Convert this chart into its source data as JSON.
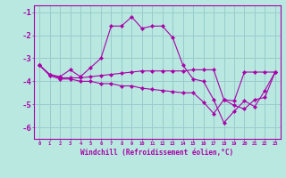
{
  "xlabel": "Windchill (Refroidissement éolien,°C)",
  "background_color": "#b8e8df",
  "line_color": "#aa00aa",
  "grid_color": "#99cccc",
  "x_values": [
    0,
    1,
    2,
    3,
    4,
    5,
    6,
    7,
    8,
    9,
    10,
    11,
    12,
    13,
    14,
    15,
    16,
    17,
    18,
    19,
    20,
    21,
    22,
    23
  ],
  "series1": [
    -3.3,
    -3.7,
    -3.8,
    -3.5,
    -3.8,
    -3.4,
    -3.0,
    -1.6,
    -1.6,
    -1.2,
    -1.7,
    -1.6,
    -1.6,
    -2.1,
    -3.3,
    -3.9,
    -4.0,
    -4.8,
    -5.8,
    -5.3,
    -4.85,
    -5.1,
    -4.4,
    -3.6
  ],
  "series2": [
    -3.3,
    -3.7,
    -3.85,
    -3.85,
    -3.85,
    -3.8,
    -3.75,
    -3.7,
    -3.65,
    -3.6,
    -3.55,
    -3.55,
    -3.55,
    -3.55,
    -3.55,
    -3.5,
    -3.5,
    -3.5,
    -4.8,
    -4.85,
    -3.6,
    -3.6,
    -3.6,
    -3.6
  ],
  "series3": [
    -3.3,
    -3.75,
    -3.9,
    -3.9,
    -4.0,
    -4.0,
    -4.1,
    -4.1,
    -4.2,
    -4.2,
    -4.3,
    -4.35,
    -4.4,
    -4.45,
    -4.5,
    -4.5,
    -4.9,
    -5.4,
    -4.8,
    -5.05,
    -5.2,
    -4.8,
    -4.7,
    -3.6
  ],
  "ylim": [
    -6.5,
    -0.7
  ],
  "yticks": [
    -6,
    -5,
    -4,
    -3,
    -2,
    -1
  ],
  "xlim": [
    -0.5,
    23.5
  ]
}
